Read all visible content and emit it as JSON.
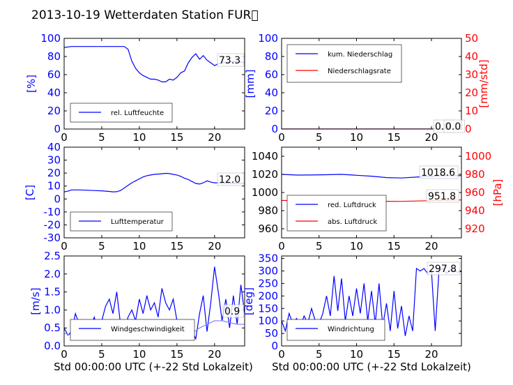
{
  "title": "2013-10-19 Wetterdaten Station FUR\u0000",
  "xlabel": "Std 00:00:00 UTC (+-22 Std Lokalzeit)",
  "colors": {
    "primary": "#0000ff",
    "secondary": "#ff0000",
    "light": "#8888ff"
  },
  "chart_data": [
    {
      "type": "line",
      "ylabel": "[%]",
      "xlim": [
        0,
        24
      ],
      "ylim": [
        0,
        100
      ],
      "xticks": [
        0,
        5,
        10,
        15,
        20
      ],
      "yticks": [
        0,
        20,
        40,
        60,
        80,
        100
      ],
      "legend": {
        "position": "lower-left",
        "entries": [
          "rel. Luftfeuchte"
        ]
      },
      "annotations": [
        "73.3"
      ],
      "series": [
        {
          "name": "rel. Luftfeuchte",
          "color": "#0000ff",
          "x": [
            0,
            1,
            2,
            3,
            4,
            5,
            6,
            7,
            8,
            8.5,
            9,
            9.5,
            10,
            10.5,
            11,
            11.5,
            12,
            12.5,
            13,
            13.5,
            14,
            14.5,
            15,
            15.5,
            16,
            16.5,
            17,
            17.5,
            18,
            18.5,
            19,
            19.5,
            20,
            20.5,
            21,
            22,
            23,
            24
          ],
          "y": [
            90,
            91,
            91,
            91,
            91,
            91,
            91,
            91,
            91,
            88,
            75,
            67,
            62,
            59,
            57,
            55,
            55,
            54,
            52,
            52,
            55,
            54,
            57,
            62,
            64,
            73,
            79,
            83,
            77,
            81,
            76,
            73,
            70,
            72,
            73,
            74,
            75,
            73
          ]
        }
      ]
    },
    {
      "type": "line",
      "ylabel": "[mm]",
      "ylabel_right": "[mm/std]",
      "xlim": [
        0,
        24
      ],
      "ylim": [
        0,
        100
      ],
      "ylim_right": [
        0,
        50
      ],
      "xticks": [
        0,
        5,
        10,
        15,
        20
      ],
      "yticks": [
        0,
        20,
        40,
        60,
        80,
        100
      ],
      "yticks_right": [
        0,
        10,
        20,
        30,
        40,
        50
      ],
      "legend": {
        "position": "upper-left",
        "entries": [
          "kum. Niederschlag",
          "Niederschlagsrate"
        ]
      },
      "annotations": [
        "0.0",
        "0.0"
      ],
      "series": [
        {
          "name": "kum. Niederschlag",
          "color": "#0000ff",
          "x": [
            0,
            24
          ],
          "y": [
            0,
            0
          ]
        },
        {
          "name": "Niederschlagsrate",
          "color": "#ff0000",
          "x": [
            0,
            24
          ],
          "y": [
            0,
            0
          ]
        }
      ]
    },
    {
      "type": "line",
      "ylabel": "[C]",
      "xlim": [
        0,
        24
      ],
      "ylim": [
        -30,
        40
      ],
      "xticks": [
        0,
        5,
        10,
        15,
        20
      ],
      "yticks": [
        -30,
        -20,
        -10,
        0,
        10,
        20,
        30,
        40
      ],
      "legend": {
        "position": "lower-left",
        "entries": [
          "Lufttemperatur"
        ]
      },
      "annotations": [
        "12.0"
      ],
      "series": [
        {
          "name": "Lufttemperatur",
          "color": "#0000ff",
          "x": [
            0,
            0.5,
            1,
            2,
            3,
            4,
            5,
            6,
            6.5,
            7,
            7.5,
            8,
            8.5,
            9,
            9.5,
            10,
            10.5,
            11,
            11.5,
            12,
            12.5,
            13,
            13.5,
            14,
            14.5,
            15,
            15.5,
            16,
            16.5,
            17,
            17.5,
            18,
            18.5,
            19,
            19.5,
            20,
            20.5,
            21,
            22,
            23,
            24
          ],
          "y": [
            5.5,
            6,
            7,
            7,
            6.8,
            6.5,
            6.3,
            5.8,
            5.5,
            5.6,
            6.5,
            8.5,
            10.5,
            12.5,
            14,
            15.5,
            17,
            18,
            18.5,
            19,
            19.2,
            19.5,
            19.8,
            19.6,
            19,
            18.5,
            17.5,
            16,
            15,
            13.5,
            12,
            11.5,
            12.5,
            14,
            13,
            12.5,
            12.5,
            12,
            12,
            12,
            12
          ]
        }
      ]
    },
    {
      "type": "line",
      "ylabel": "",
      "ylabel_right": "[hPa]",
      "xlim": [
        0,
        24
      ],
      "ylim": [
        950,
        1050
      ],
      "ylim_right": [
        910,
        1010
      ],
      "xticks": [
        0,
        5,
        10,
        15,
        20
      ],
      "yticks": [
        960,
        980,
        1000,
        1020,
        1040
      ],
      "yticks_right": [
        920,
        940,
        960,
        980,
        1000
      ],
      "legend": {
        "position": "lower-left",
        "entries": [
          "red. Luftdruck",
          "abs. Luftdruck"
        ]
      },
      "annotations": [
        "1018.6",
        "951.8"
      ],
      "series": [
        {
          "name": "red. Luftdruck",
          "color": "#0000ff",
          "x": [
            0,
            2,
            4,
            6,
            8,
            10,
            12,
            14,
            16,
            18,
            20,
            22,
            24
          ],
          "y": [
            1020,
            1019.2,
            1019.3,
            1019.6,
            1020,
            1019,
            1018,
            1016.5,
            1016,
            1017,
            1018,
            1018.5,
            1018.6
          ]
        },
        {
          "name": "abs. Luftdruck",
          "color": "#ff0000",
          "x": [
            0,
            2,
            4,
            6,
            8,
            10,
            12,
            14,
            16,
            18,
            20,
            22,
            24
          ],
          "y": [
            951.2,
            951,
            950.9,
            950.8,
            950.7,
            950.6,
            950.5,
            950.3,
            950.2,
            950.6,
            951,
            951.5,
            951.8
          ]
        }
      ]
    },
    {
      "type": "line",
      "ylabel": "[m/s]",
      "xlim": [
        0,
        24
      ],
      "ylim": [
        0,
        2.5
      ],
      "xticks": [
        0,
        5,
        10,
        15,
        20
      ],
      "yticks": [
        0.0,
        0.5,
        1.0,
        1.5,
        2.0,
        2.5
      ],
      "legend": {
        "position": "lower-center",
        "entries": [
          "Windgeschwindigkeit"
        ]
      },
      "annotations": [
        "0.9"
      ],
      "series": [
        {
          "name": "Windgeschwindigkeit",
          "color": "#0000ff",
          "x": [
            0,
            0.5,
            1,
            1.5,
            2,
            2.5,
            3,
            3.5,
            4,
            4.5,
            5,
            5.5,
            6,
            6.5,
            7,
            7.5,
            8,
            8.5,
            9,
            9.5,
            10,
            10.5,
            11,
            11.5,
            12,
            12.5,
            13,
            13.5,
            14,
            14.5,
            15,
            15.5,
            16,
            16.5,
            17,
            17.5,
            18,
            18.5,
            19,
            19.5,
            20,
            20.5,
            21,
            21.5,
            22,
            22.5,
            23,
            23.5,
            24
          ],
          "y": [
            0.5,
            0.3,
            0.4,
            0.9,
            0.6,
            0.4,
            0.7,
            0.5,
            0.8,
            0.4,
            0.7,
            1.1,
            1.3,
            0.9,
            1.5,
            0.6,
            0.4,
            0.8,
            1.0,
            0.7,
            1.3,
            0.9,
            1.4,
            1.0,
            1.2,
            0.8,
            1.6,
            1.2,
            1.0,
            1.3,
            0.7,
            0.6,
            0.3,
            0.5,
            0.4,
            0.2,
            0.9,
            1.4,
            0.4,
            1.2,
            2.2,
            1.5,
            0.7,
            1.3,
            0.5,
            1.4,
            0.6,
            1.7,
            0.9
          ]
        },
        {
          "name": "",
          "color": "#8888ff",
          "x": [
            0,
            1,
            2,
            3,
            4,
            5,
            6,
            7,
            8,
            9,
            10,
            11,
            12,
            13,
            14,
            15,
            16,
            17,
            18,
            19,
            20,
            21,
            22,
            23,
            24
          ],
          "y": [
            0.35,
            0.3,
            0.4,
            0.5,
            0.5,
            0.55,
            0.6,
            0.65,
            0.6,
            0.6,
            0.65,
            0.7,
            0.7,
            0.7,
            0.65,
            0.55,
            0.4,
            0.35,
            0.5,
            0.6,
            0.7,
            0.7,
            0.65,
            0.6,
            0.6
          ]
        }
      ]
    },
    {
      "type": "line",
      "ylabel": "[deg]",
      "xlim": [
        0,
        24
      ],
      "ylim": [
        0,
        360
      ],
      "xticks": [
        0,
        5,
        10,
        15,
        20
      ],
      "yticks": [
        0,
        50,
        100,
        150,
        200,
        250,
        300,
        350
      ],
      "legend": {
        "position": "lower-left",
        "entries": [
          "Windrichtung"
        ]
      },
      "annotations": [
        "297.8"
      ],
      "series": [
        {
          "name": "Windrichtung",
          "color": "#0000ff",
          "x": [
            0,
            0.5,
            1,
            1.5,
            2,
            2.5,
            3,
            3.5,
            4,
            4.5,
            5,
            5.5,
            6,
            6.5,
            7,
            7.5,
            8,
            8.5,
            9,
            9.5,
            10,
            10.5,
            11,
            11.5,
            12,
            12.5,
            13,
            13.5,
            14,
            14.5,
            15,
            15.5,
            16,
            16.5,
            17,
            17.5,
            18,
            18.5,
            19,
            19.5,
            20,
            20.5,
            21,
            21.5,
            22,
            22.5,
            23,
            23.5,
            24
          ],
          "y": [
            100,
            60,
            130,
            90,
            110,
            80,
            120,
            90,
            150,
            100,
            90,
            130,
            200,
            120,
            280,
            140,
            270,
            100,
            200,
            120,
            230,
            130,
            250,
            100,
            220,
            90,
            250,
            80,
            170,
            60,
            220,
            70,
            160,
            40,
            120,
            60,
            310,
            300,
            310,
            290,
            300,
            60,
            300,
            310,
            290,
            305,
            300,
            295,
            298
          ]
        }
      ]
    }
  ]
}
